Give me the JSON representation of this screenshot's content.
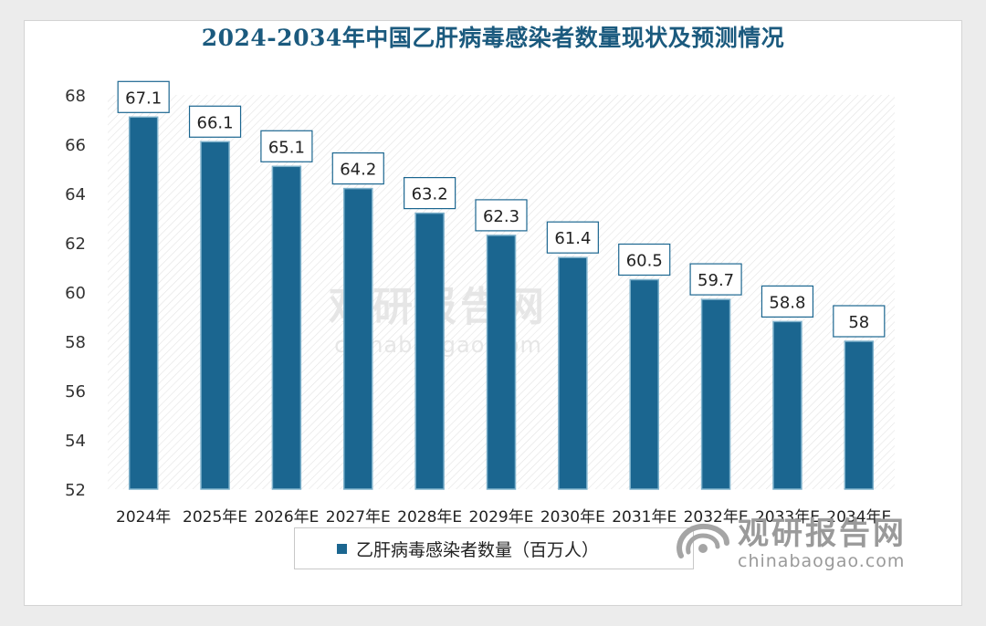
{
  "chart_data": {
    "type": "bar",
    "title": "2024-2034年中国乙肝病毒感染者数量现状及预测情况",
    "categories": [
      "2024年",
      "2025年E",
      "2026年E",
      "2027年E",
      "2028年E",
      "2029年E",
      "2030年E",
      "2031年E",
      "2032年E",
      "2033年E",
      "2034年E"
    ],
    "series": [
      {
        "name": "乙肝病毒感染者数量（百万人）",
        "values": [
          67.1,
          66.1,
          65.1,
          64.2,
          63.2,
          62.3,
          61.4,
          60.5,
          59.7,
          58.8,
          58
        ]
      }
    ],
    "ylim": [
      52,
      68
    ],
    "yticks": [
      52,
      54,
      56,
      58,
      60,
      62,
      64,
      66,
      68
    ],
    "xlabel": "",
    "ylabel": "",
    "legend": "bottom-center",
    "colors": {
      "bar": "#1b6690",
      "bar_edge": "#7fb2cc",
      "title": "#1b5a7e"
    }
  },
  "watermark": {
    "name": "观研报告网",
    "domain": "chinabaogao.com"
  }
}
